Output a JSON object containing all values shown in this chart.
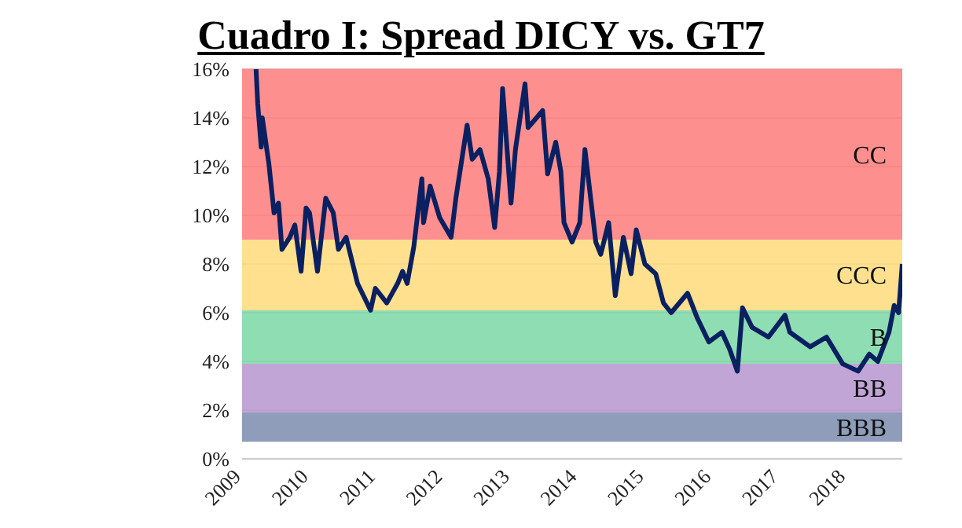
{
  "chart_data": {
    "type": "line",
    "title": "Cuadro I: Spread DICY vs. GT7",
    "x": [
      "2009-03-18",
      "2009-03-27",
      "2009-04-15",
      "2009-04-21",
      "2009-05-27",
      "2009-06-24",
      "2009-07-18",
      "2009-08-06",
      "2009-09-18",
      "2009-10-15",
      "2009-11-18",
      "2009-12-15",
      "2010-01-03",
      "2010-02-15",
      "2010-04-01",
      "2010-05-12",
      "2010-06-09",
      "2010-07-21",
      "2010-09-21",
      "2010-12-01",
      "2010-12-27",
      "2011-02-27",
      "2011-04-27",
      "2011-05-24",
      "2011-06-18",
      "2011-07-24",
      "2011-09-06",
      "2011-09-15",
      "2011-10-21",
      "2011-12-12",
      "2012-02-12",
      "2012-03-09",
      "2012-05-09",
      "2012-06-06",
      "2012-07-18",
      "2012-09-01",
      "2012-10-06",
      "2012-11-01",
      "2012-11-18",
      "2013-01-03",
      "2013-01-27",
      "2013-03-20",
      "2013-04-06",
      "2013-06-24",
      "2013-07-21",
      "2013-09-03",
      "2013-10-01",
      "2013-10-18",
      "2013-12-01",
      "2014-01-12",
      "2014-02-09",
      "2014-04-09",
      "2014-05-06",
      "2014-06-18",
      "2014-07-24",
      "2014-09-06",
      "2014-10-18",
      "2014-11-15",
      "2015-01-01",
      "2015-03-01",
      "2015-04-12",
      "2015-05-24",
      "2015-08-21",
      "2015-10-12",
      "2015-12-15",
      "2016-02-24",
      "2016-04-06",
      "2016-05-18",
      "2016-06-15",
      "2016-08-06",
      "2016-11-03",
      "2017-02-01",
      "2017-02-27",
      "2017-06-18",
      "2017-09-15",
      "2017-12-12",
      "2018-03-06",
      "2018-05-06",
      "2018-06-21",
      "2018-08-21",
      "2018-09-18",
      "2018-10-12",
      "2018-11-01"
    ],
    "series": [
      {
        "color": "#0a2060",
        "values": [
          16.0,
          14.6,
          12.8,
          14.0,
          12.1,
          10.1,
          10.5,
          8.6,
          9.1,
          9.6,
          7.7,
          10.3,
          10.1,
          7.7,
          10.7,
          10.1,
          8.6,
          9.1,
          7.2,
          6.1,
          7.0,
          6.4,
          7.2,
          7.7,
          7.2,
          8.7,
          11.5,
          9.7,
          11.2,
          9.9,
          9.1,
          10.7,
          13.7,
          12.3,
          12.7,
          11.5,
          9.5,
          11.8,
          15.2,
          10.5,
          12.7,
          15.4,
          13.6,
          14.3,
          11.7,
          13.0,
          11.8,
          9.7,
          8.9,
          9.7,
          12.7,
          8.9,
          8.4,
          9.7,
          6.7,
          9.1,
          7.6,
          9.4,
          8.0,
          7.6,
          6.4,
          6.0,
          6.8,
          5.8,
          4.8,
          5.2,
          4.5,
          3.6,
          6.2,
          5.4,
          5.0,
          5.9,
          5.2,
          4.6,
          5.0,
          3.9,
          3.6,
          4.3,
          4.0,
          5.2,
          6.3,
          6.0,
          8.0
        ]
      }
    ],
    "xlim": [
      "2009-01-01",
      "2018-11-01"
    ],
    "xticks": [
      "2009",
      "2010",
      "2011",
      "2012",
      "2013",
      "2014",
      "2015",
      "2016",
      "2017",
      "2018"
    ],
    "ylim": [
      0,
      16
    ],
    "yticks": [
      {
        "value": 0,
        "label": "0%"
      },
      {
        "value": 2,
        "label": "2%"
      },
      {
        "value": 4,
        "label": "4%"
      },
      {
        "value": 6,
        "label": "6%"
      },
      {
        "value": 8,
        "label": "8%"
      },
      {
        "value": 10,
        "label": "10%"
      },
      {
        "value": 12,
        "label": "12%"
      },
      {
        "value": 14,
        "label": "14%"
      },
      {
        "value": 16,
        "label": "16%"
      }
    ],
    "bands": [
      {
        "axis": "y",
        "from": 9,
        "to": 16,
        "label": "CC",
        "color": "#fe8080"
      },
      {
        "axis": "y",
        "from": 6.1,
        "to": 9,
        "label": "CCC",
        "color": "#fedc80"
      },
      {
        "axis": "y",
        "from": 3.9,
        "to": 6.1,
        "label": "B",
        "color": "#80d8a8"
      },
      {
        "axis": "y",
        "from": 1.9,
        "to": 3.9,
        "label": "BB",
        "color": "#b898d0"
      },
      {
        "axis": "y",
        "from": 0.7,
        "to": 1.9,
        "label": "BBB",
        "color": "#8090b0"
      }
    ],
    "grid": "y",
    "line_style": "solid",
    "marker": "none",
    "legend": false
  }
}
